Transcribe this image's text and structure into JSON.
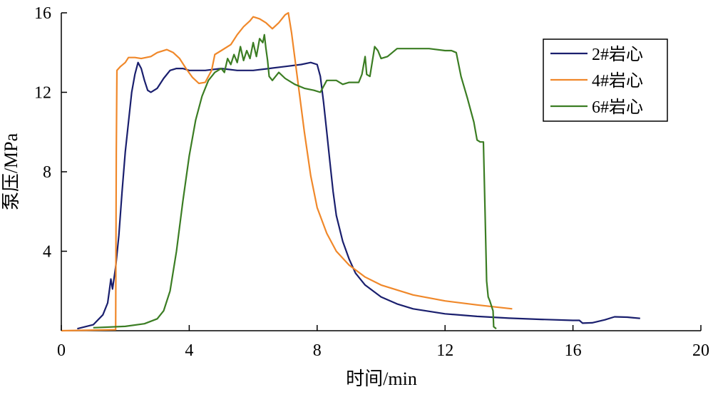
{
  "chart_data": {
    "type": "line",
    "title": "",
    "xlabel": "时间/min",
    "ylabel": "泵压/MPa",
    "xlim": [
      0,
      20
    ],
    "ylim": [
      0,
      16
    ],
    "xticks": [
      0,
      4,
      8,
      12,
      16,
      20
    ],
    "yticks": [
      4,
      8,
      12,
      16
    ],
    "x_tick_labels": [
      "0",
      "4",
      "8",
      "12",
      "16",
      "20"
    ],
    "y_tick_labels": [
      "4",
      "8",
      "12",
      "16"
    ],
    "grid": false,
    "legend_position": "top-right",
    "series": [
      {
        "name": "2#岩心",
        "color": "#1a1f6e",
        "points": [
          [
            0.5,
            0.1
          ],
          [
            1.0,
            0.3
          ],
          [
            1.3,
            0.8
          ],
          [
            1.45,
            1.4
          ],
          [
            1.5,
            2.0
          ],
          [
            1.55,
            2.6
          ],
          [
            1.6,
            2.1
          ],
          [
            1.7,
            3.2
          ],
          [
            1.8,
            4.8
          ],
          [
            1.9,
            7.0
          ],
          [
            2.0,
            9.0
          ],
          [
            2.1,
            10.5
          ],
          [
            2.2,
            12.0
          ],
          [
            2.3,
            12.9
          ],
          [
            2.4,
            13.5
          ],
          [
            2.5,
            13.2
          ],
          [
            2.6,
            12.6
          ],
          [
            2.7,
            12.1
          ],
          [
            2.8,
            12.0
          ],
          [
            3.0,
            12.2
          ],
          [
            3.2,
            12.7
          ],
          [
            3.4,
            13.1
          ],
          [
            3.6,
            13.2
          ],
          [
            3.8,
            13.2
          ],
          [
            4.0,
            13.1
          ],
          [
            4.5,
            13.1
          ],
          [
            5.0,
            13.2
          ],
          [
            5.5,
            13.1
          ],
          [
            6.0,
            13.1
          ],
          [
            6.5,
            13.2
          ],
          [
            7.0,
            13.3
          ],
          [
            7.5,
            13.4
          ],
          [
            7.8,
            13.5
          ],
          [
            8.0,
            13.4
          ],
          [
            8.1,
            12.8
          ],
          [
            8.2,
            11.5
          ],
          [
            8.3,
            10.0
          ],
          [
            8.4,
            8.5
          ],
          [
            8.5,
            7.0
          ],
          [
            8.6,
            5.8
          ],
          [
            8.8,
            4.5
          ],
          [
            9.0,
            3.6
          ],
          [
            9.2,
            2.9
          ],
          [
            9.5,
            2.3
          ],
          [
            10.0,
            1.7
          ],
          [
            10.5,
            1.35
          ],
          [
            11.0,
            1.1
          ],
          [
            12.0,
            0.85
          ],
          [
            13.0,
            0.72
          ],
          [
            14.0,
            0.63
          ],
          [
            15.0,
            0.57
          ],
          [
            16.0,
            0.52
          ],
          [
            16.2,
            0.52
          ],
          [
            16.3,
            0.38
          ],
          [
            16.6,
            0.4
          ],
          [
            17.0,
            0.55
          ],
          [
            17.3,
            0.7
          ],
          [
            17.7,
            0.68
          ],
          [
            18.1,
            0.62
          ]
        ]
      },
      {
        "name": "4#岩心",
        "color": "#f0882a",
        "points": [
          [
            0.0,
            0.0
          ],
          [
            1.7,
            0.05
          ],
          [
            1.72,
            9.0
          ],
          [
            1.74,
            13.1
          ],
          [
            1.85,
            13.3
          ],
          [
            2.0,
            13.5
          ],
          [
            2.1,
            13.75
          ],
          [
            2.3,
            13.75
          ],
          [
            2.5,
            13.7
          ],
          [
            2.8,
            13.8
          ],
          [
            3.0,
            14.0
          ],
          [
            3.3,
            14.15
          ],
          [
            3.5,
            14.0
          ],
          [
            3.7,
            13.7
          ],
          [
            3.9,
            13.2
          ],
          [
            4.1,
            12.75
          ],
          [
            4.3,
            12.45
          ],
          [
            4.5,
            12.5
          ],
          [
            4.7,
            13.1
          ],
          [
            4.8,
            13.9
          ],
          [
            5.0,
            14.1
          ],
          [
            5.3,
            14.4
          ],
          [
            5.5,
            14.9
          ],
          [
            5.7,
            15.3
          ],
          [
            5.9,
            15.6
          ],
          [
            6.0,
            15.8
          ],
          [
            6.2,
            15.7
          ],
          [
            6.4,
            15.5
          ],
          [
            6.6,
            15.2
          ],
          [
            6.8,
            15.5
          ],
          [
            7.0,
            15.9
          ],
          [
            7.1,
            16.0
          ],
          [
            7.2,
            15.0
          ],
          [
            7.4,
            12.5
          ],
          [
            7.6,
            10.0
          ],
          [
            7.8,
            7.8
          ],
          [
            8.0,
            6.2
          ],
          [
            8.3,
            4.9
          ],
          [
            8.6,
            4.0
          ],
          [
            9.0,
            3.3
          ],
          [
            9.5,
            2.7
          ],
          [
            10.0,
            2.3
          ],
          [
            11.0,
            1.8
          ],
          [
            12.0,
            1.5
          ],
          [
            13.0,
            1.3
          ],
          [
            14.1,
            1.1
          ]
        ]
      },
      {
        "name": "6#岩心",
        "color": "#3b7d23",
        "points": [
          [
            1.0,
            0.15
          ],
          [
            2.0,
            0.22
          ],
          [
            2.6,
            0.35
          ],
          [
            3.0,
            0.6
          ],
          [
            3.2,
            1.0
          ],
          [
            3.4,
            2.0
          ],
          [
            3.6,
            4.0
          ],
          [
            3.8,
            6.5
          ],
          [
            4.0,
            8.8
          ],
          [
            4.2,
            10.6
          ],
          [
            4.4,
            11.8
          ],
          [
            4.6,
            12.6
          ],
          [
            4.8,
            13.0
          ],
          [
            5.0,
            13.2
          ],
          [
            5.1,
            13.0
          ],
          [
            5.2,
            13.7
          ],
          [
            5.3,
            13.4
          ],
          [
            5.4,
            13.9
          ],
          [
            5.5,
            13.5
          ],
          [
            5.6,
            14.3
          ],
          [
            5.7,
            13.6
          ],
          [
            5.8,
            14.1
          ],
          [
            5.9,
            13.7
          ],
          [
            6.0,
            14.5
          ],
          [
            6.1,
            13.8
          ],
          [
            6.2,
            14.7
          ],
          [
            6.3,
            14.5
          ],
          [
            6.35,
            14.9
          ],
          [
            6.4,
            14.2
          ],
          [
            6.45,
            13.6
          ],
          [
            6.5,
            12.8
          ],
          [
            6.6,
            12.6
          ],
          [
            6.8,
            13.0
          ],
          [
            7.0,
            12.7
          ],
          [
            7.3,
            12.4
          ],
          [
            7.6,
            12.2
          ],
          [
            7.9,
            12.1
          ],
          [
            8.1,
            12.0
          ],
          [
            8.3,
            12.6
          ],
          [
            8.6,
            12.6
          ],
          [
            8.8,
            12.4
          ],
          [
            9.0,
            12.5
          ],
          [
            9.3,
            12.5
          ],
          [
            9.4,
            12.9
          ],
          [
            9.5,
            13.8
          ],
          [
            9.55,
            12.9
          ],
          [
            9.65,
            12.8
          ],
          [
            9.75,
            13.8
          ],
          [
            9.8,
            14.3
          ],
          [
            9.9,
            14.1
          ],
          [
            10.0,
            13.7
          ],
          [
            10.2,
            13.8
          ],
          [
            10.5,
            14.2
          ],
          [
            11.0,
            14.2
          ],
          [
            11.5,
            14.2
          ],
          [
            12.0,
            14.1
          ],
          [
            12.2,
            14.1
          ],
          [
            12.35,
            14.0
          ],
          [
            12.5,
            12.8
          ],
          [
            12.7,
            11.7
          ],
          [
            12.9,
            10.5
          ],
          [
            13.0,
            9.6
          ],
          [
            13.1,
            9.5
          ],
          [
            13.2,
            9.5
          ],
          [
            13.25,
            6.0
          ],
          [
            13.3,
            2.5
          ],
          [
            13.35,
            1.7
          ],
          [
            13.4,
            1.5
          ],
          [
            13.5,
            1.0
          ],
          [
            13.52,
            0.2
          ],
          [
            13.6,
            0.1
          ]
        ]
      }
    ]
  }
}
